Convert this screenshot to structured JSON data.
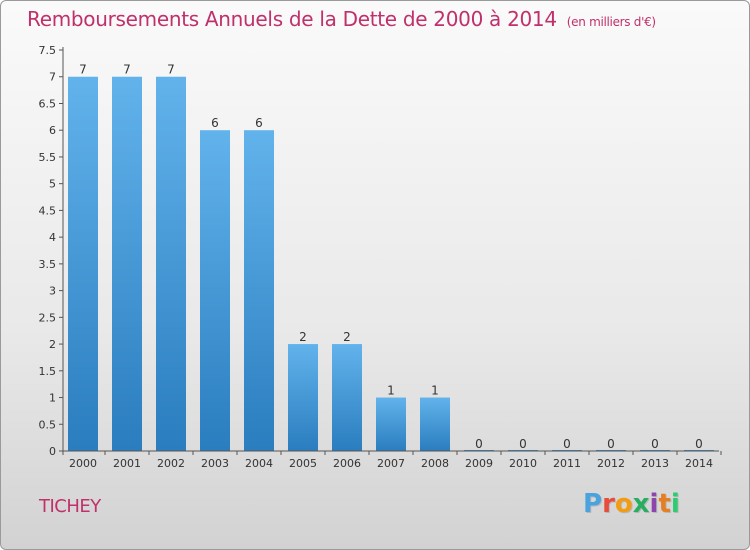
{
  "header": {
    "title": "Remboursements Annuels de la Dette de 2000 à 2014",
    "subtitle": "(en milliers d'€)"
  },
  "commune": "TICHEY",
  "logo": {
    "text": "Proxiti",
    "letter_colors": [
      "#4aa3df",
      "#e74c3c",
      "#f39c12",
      "#27ae60",
      "#8e44ad",
      "#e67e22",
      "#2ecc71"
    ]
  },
  "colors": {
    "bar_light": "#5fb0ea",
    "bar_dark": "#2a7fc0",
    "title": "#c0306a",
    "axis": "#333333"
  },
  "chart_data": {
    "type": "bar",
    "categories": [
      "2000",
      "2001",
      "2002",
      "2003",
      "2004",
      "2005",
      "2006",
      "2007",
      "2008",
      "2009",
      "2010",
      "2011",
      "2012",
      "2013",
      "2014"
    ],
    "values": [
      7,
      7,
      7,
      6,
      6,
      2,
      2,
      1,
      1,
      0,
      0,
      0,
      0,
      0,
      0
    ],
    "data_labels": [
      "7",
      "7",
      "7",
      "6",
      "6",
      "2",
      "2",
      "1",
      "1",
      "0",
      "0",
      "0",
      "0",
      "0",
      "0"
    ],
    "yticks": [
      0,
      0.5,
      1,
      1.5,
      2,
      2.5,
      3,
      3.5,
      4,
      4.5,
      5,
      5.5,
      6,
      6.5,
      7,
      7.5
    ],
    "ytick_labels": [
      "0",
      "0.5",
      "1",
      "1.5",
      "2",
      "2.5",
      "3",
      "3.5",
      "4",
      "4.5",
      "5",
      "5.5",
      "6",
      "6.5",
      "7",
      "7.5"
    ],
    "ylim": [
      0,
      7.5
    ],
    "title": "Remboursements Annuels de la Dette de 2000 à 2014",
    "xlabel": "",
    "ylabel": ""
  }
}
